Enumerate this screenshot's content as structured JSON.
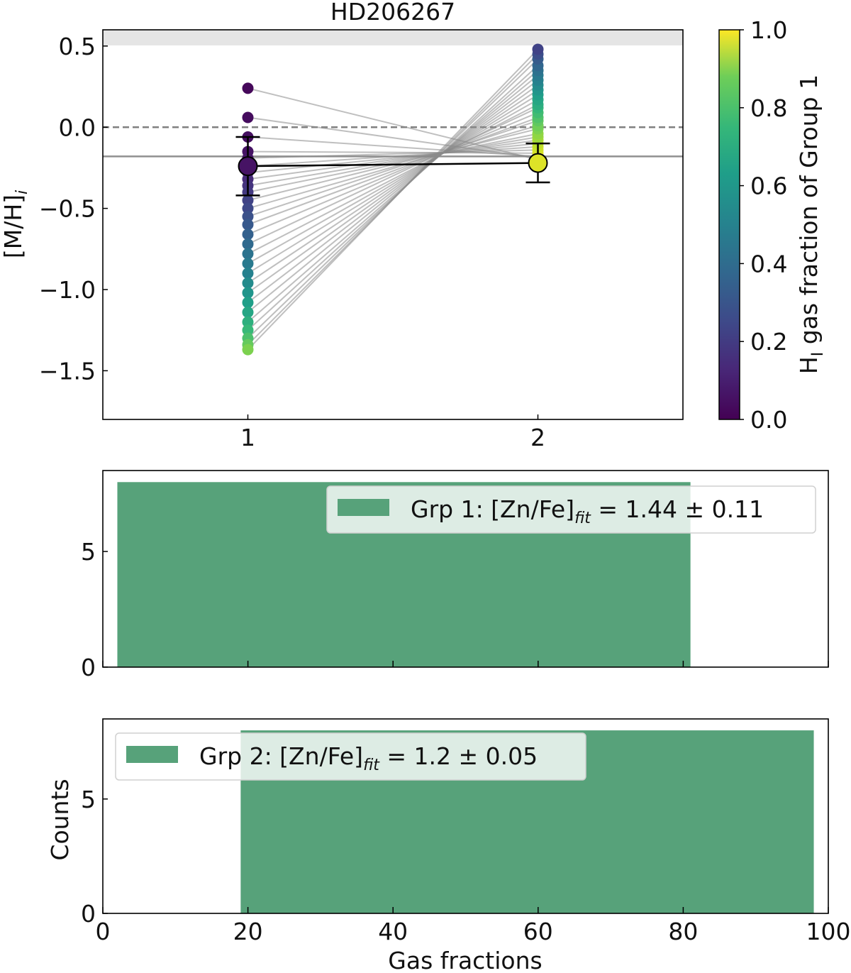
{
  "chart_data": [
    {
      "type": "scatter",
      "title": "HD206267",
      "ylabel": "[M/H]",
      "ylabel_sub": "i",
      "xlim": [
        0.5,
        2.5
      ],
      "ylim": [
        -1.8,
        0.6
      ],
      "xticks": [
        "1",
        "2"
      ],
      "yticks": [
        "0.5",
        "0.0",
        "−0.5",
        "−1.0",
        "−1.5"
      ],
      "ytick_values": [
        0.5,
        0.0,
        -0.5,
        -1.0,
        -1.5
      ],
      "shaded_region_above": 0.5,
      "dashed_reference_line": 0.0,
      "solid_reference_line": -0.18,
      "group1": {
        "x": 1,
        "values": [
          0.24,
          0.06,
          -0.06,
          -0.15,
          -0.19,
          -0.24,
          -0.28,
          -0.32,
          -0.36,
          -0.4,
          -0.45,
          -0.5,
          -0.55,
          -0.6,
          -0.66,
          -0.72,
          -0.78,
          -0.84,
          -0.9,
          -0.96,
          -1.02,
          -1.08,
          -1.14,
          -1.2,
          -1.25,
          -1.3,
          -1.34,
          -1.37
        ],
        "color_values": [
          0.02,
          0.03,
          0.04,
          0.05,
          0.06,
          0.08,
          0.1,
          0.12,
          0.15,
          0.17,
          0.2,
          0.22,
          0.25,
          0.28,
          0.31,
          0.34,
          0.38,
          0.41,
          0.44,
          0.48,
          0.52,
          0.56,
          0.59,
          0.63,
          0.67,
          0.71,
          0.76,
          0.8
        ],
        "mean": -0.24,
        "error": 0.18,
        "mean_color_value": 0.05
      },
      "group2": {
        "x": 2,
        "values": [
          -0.2,
          -0.19,
          -0.18,
          -0.16,
          -0.14,
          -0.12,
          -0.1,
          -0.08,
          -0.06,
          -0.04,
          -0.01,
          0.01,
          0.04,
          0.06,
          0.09,
          0.12,
          0.14,
          0.17,
          0.2,
          0.23,
          0.26,
          0.29,
          0.32,
          0.35,
          0.38,
          0.42,
          0.45,
          0.48
        ],
        "color_values": [
          0.98,
          0.97,
          0.96,
          0.95,
          0.94,
          0.92,
          0.9,
          0.88,
          0.85,
          0.83,
          0.8,
          0.78,
          0.75,
          0.72,
          0.69,
          0.66,
          0.62,
          0.59,
          0.56,
          0.52,
          0.48,
          0.44,
          0.41,
          0.37,
          0.33,
          0.29,
          0.24,
          0.2
        ],
        "mean": -0.22,
        "error": 0.12,
        "mean_color_value": 0.95
      },
      "colorbar": {
        "label_prefix": "H",
        "label_sub": "I",
        "label_suffix": " gas fraction of Group 1",
        "range": [
          0.0,
          1.0
        ],
        "ticks": [
          "0.0",
          "0.2",
          "0.4",
          "0.6",
          "0.8",
          "1.0"
        ],
        "colormap": "viridis"
      }
    },
    {
      "type": "bar",
      "subtype": "histogram",
      "xlim": [
        0,
        100
      ],
      "ylim": [
        0,
        8.5
      ],
      "yticks": [
        "0",
        "5"
      ],
      "ytick_values": [
        0,
        5
      ],
      "xtick_values": [
        0,
        20,
        40,
        60,
        80,
        100
      ],
      "bins": [
        {
          "start": 2,
          "end": 81,
          "count": 8
        }
      ],
      "color": "#57a27a",
      "legend": {
        "position": "upper right",
        "prefix": "Grp 1: [Zn/Fe]",
        "sub": "fit",
        "suffix": " = 1.44 ± 0.11"
      }
    },
    {
      "type": "bar",
      "subtype": "histogram",
      "xlabel": "Gas fractions",
      "ylabel": "Counts",
      "xlim": [
        0,
        100
      ],
      "ylim": [
        0,
        8.5
      ],
      "xticks": [
        "0",
        "20",
        "40",
        "60",
        "80",
        "100"
      ],
      "xtick_values": [
        0,
        20,
        40,
        60,
        80,
        100
      ],
      "yticks": [
        "0",
        "5"
      ],
      "ytick_values": [
        0,
        5
      ],
      "bins": [
        {
          "start": 19,
          "end": 98,
          "count": 8
        }
      ],
      "color": "#57a27a",
      "legend": {
        "position": "upper left",
        "prefix": "Grp 2: [Zn/Fe]",
        "sub": "fit",
        "suffix": " = 1.2 ± 0.05"
      }
    }
  ]
}
